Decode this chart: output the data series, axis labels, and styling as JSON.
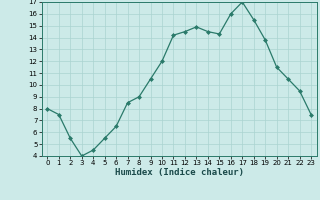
{
  "x": [
    0,
    1,
    2,
    3,
    4,
    5,
    6,
    7,
    8,
    9,
    10,
    11,
    12,
    13,
    14,
    15,
    16,
    17,
    18,
    19,
    20,
    21,
    22,
    23
  ],
  "y": [
    8,
    7.5,
    5.5,
    4.0,
    4.5,
    5.5,
    6.5,
    8.5,
    9.0,
    10.5,
    12.0,
    14.2,
    14.5,
    14.9,
    14.5,
    14.3,
    16.0,
    17.0,
    15.5,
    13.8,
    11.5,
    10.5,
    9.5,
    7.5
  ],
  "xlabel": "Humidex (Indice chaleur)",
  "line_color": "#2a7a6a",
  "marker_color": "#2a7a6a",
  "bg_color": "#cceae8",
  "grid_color": "#aad4d0",
  "ylim": [
    4,
    17
  ],
  "xlim": [
    -0.5,
    23.5
  ],
  "yticks": [
    4,
    5,
    6,
    7,
    8,
    9,
    10,
    11,
    12,
    13,
    14,
    15,
    16,
    17
  ],
  "xticks": [
    0,
    1,
    2,
    3,
    4,
    5,
    6,
    7,
    8,
    9,
    10,
    11,
    12,
    13,
    14,
    15,
    16,
    17,
    18,
    19,
    20,
    21,
    22,
    23
  ],
  "tick_fontsize": 5.0,
  "xlabel_fontsize": 6.5
}
